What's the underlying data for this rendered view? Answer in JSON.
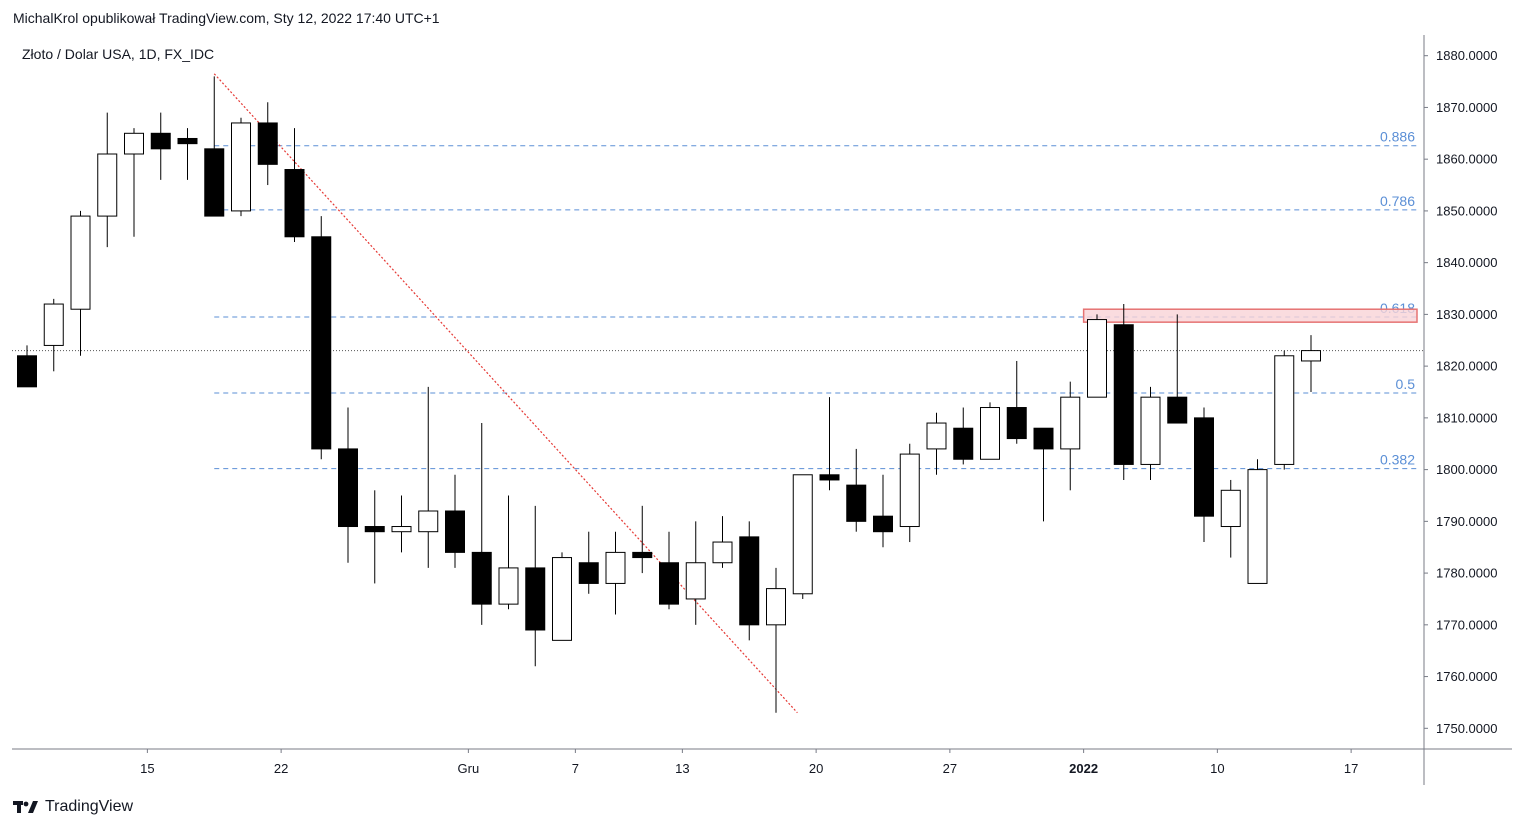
{
  "header": {
    "publisher": "MichalKrol opublikował TradingView.com, Sty 12, 2022 17:40 UTC+1"
  },
  "footer": {
    "brand": "TradingView",
    "logo_icon": "tradingview-logo-icon"
  },
  "chart_data": {
    "type": "candlestick",
    "title": "Złoto / Dolar USA, 1D, FX_IDC",
    "ylim": [
      1746,
      1884
    ],
    "y_ticks": [
      "1880.0000",
      "1870.0000",
      "1860.0000",
      "1850.0000",
      "1840.0000",
      "1830.0000",
      "1820.0000",
      "1810.0000",
      "1800.0000",
      "1790.0000",
      "1780.0000",
      "1770.0000",
      "1760.0000",
      "1750.0000"
    ],
    "y_tick_values": [
      1880,
      1870,
      1860,
      1850,
      1840,
      1830,
      1820,
      1810,
      1800,
      1790,
      1780,
      1770,
      1760,
      1750
    ],
    "x_ticks": [
      {
        "label": "15",
        "index": 4.5
      },
      {
        "label": "22",
        "index": 9.5
      },
      {
        "label": "Gru",
        "index": 16.5
      },
      {
        "label": "7",
        "index": 20.5
      },
      {
        "label": "13",
        "index": 24.5
      },
      {
        "label": "20",
        "index": 29.5
      },
      {
        "label": "27",
        "index": 34.5
      },
      {
        "label": "2022",
        "index": 39.5,
        "bold": true
      },
      {
        "label": "10",
        "index": 44.5
      },
      {
        "label": "17",
        "index": 49.5
      }
    ],
    "candles": [
      {
        "o": 1822,
        "h": 1824,
        "l": 1816,
        "c": 1816
      },
      {
        "o": 1824,
        "h": 1833,
        "l": 1819,
        "c": 1832
      },
      {
        "o": 1831,
        "h": 1850,
        "l": 1822,
        "c": 1849
      },
      {
        "o": 1849,
        "h": 1869,
        "l": 1843,
        "c": 1861
      },
      {
        "o": 1861,
        "h": 1866,
        "l": 1845,
        "c": 1865
      },
      {
        "o": 1865,
        "h": 1869,
        "l": 1856,
        "c": 1862
      },
      {
        "o": 1864,
        "h": 1866,
        "l": 1856,
        "c": 1863
      },
      {
        "o": 1862,
        "h": 1876,
        "l": 1849,
        "c": 1849
      },
      {
        "o": 1850,
        "h": 1868,
        "l": 1849,
        "c": 1867
      },
      {
        "o": 1867,
        "h": 1871,
        "l": 1855,
        "c": 1859
      },
      {
        "o": 1858,
        "h": 1866,
        "l": 1844,
        "c": 1845
      },
      {
        "o": 1845,
        "h": 1849,
        "l": 1802,
        "c": 1804
      },
      {
        "o": 1804,
        "h": 1812,
        "l": 1782,
        "c": 1789
      },
      {
        "o": 1789,
        "h": 1796,
        "l": 1778,
        "c": 1788
      },
      {
        "o": 1788,
        "h": 1795,
        "l": 1784,
        "c": 1789
      },
      {
        "o": 1788,
        "h": 1816,
        "l": 1781,
        "c": 1792
      },
      {
        "o": 1792,
        "h": 1799,
        "l": 1781,
        "c": 1784
      },
      {
        "o": 1784,
        "h": 1809,
        "l": 1770,
        "c": 1774
      },
      {
        "o": 1774,
        "h": 1795,
        "l": 1773,
        "c": 1781
      },
      {
        "o": 1781,
        "h": 1793,
        "l": 1762,
        "c": 1769
      },
      {
        "o": 1767,
        "h": 1784,
        "l": 1767,
        "c": 1783
      },
      {
        "o": 1782,
        "h": 1788,
        "l": 1776,
        "c": 1778
      },
      {
        "o": 1778,
        "h": 1788,
        "l": 1772,
        "c": 1784
      },
      {
        "o": 1784,
        "h": 1793,
        "l": 1780,
        "c": 1783
      },
      {
        "o": 1782,
        "h": 1788,
        "l": 1773,
        "c": 1774
      },
      {
        "o": 1775,
        "h": 1790,
        "l": 1770,
        "c": 1782
      },
      {
        "o": 1782,
        "h": 1791,
        "l": 1781,
        "c": 1786
      },
      {
        "o": 1787,
        "h": 1790,
        "l": 1767,
        "c": 1770
      },
      {
        "o": 1770,
        "h": 1781,
        "l": 1753,
        "c": 1777
      },
      {
        "o": 1776,
        "h": 1799,
        "l": 1775,
        "c": 1799
      },
      {
        "o": 1799,
        "h": 1814,
        "l": 1796,
        "c": 1798
      },
      {
        "o": 1797,
        "h": 1804,
        "l": 1788,
        "c": 1790
      },
      {
        "o": 1791,
        "h": 1799,
        "l": 1785,
        "c": 1788
      },
      {
        "o": 1789,
        "h": 1805,
        "l": 1786,
        "c": 1803
      },
      {
        "o": 1804,
        "h": 1811,
        "l": 1799,
        "c": 1809
      },
      {
        "o": 1808,
        "h": 1812,
        "l": 1801,
        "c": 1802
      },
      {
        "o": 1802,
        "h": 1813,
        "l": 1802,
        "c": 1812
      },
      {
        "o": 1812,
        "h": 1821,
        "l": 1805,
        "c": 1806
      },
      {
        "o": 1808,
        "h": 1808,
        "l": 1790,
        "c": 1804
      },
      {
        "o": 1804,
        "h": 1817,
        "l": 1796,
        "c": 1814
      },
      {
        "o": 1814,
        "h": 1830,
        "l": 1814,
        "c": 1829
      },
      {
        "o": 1828,
        "h": 1832,
        "l": 1798,
        "c": 1801
      },
      {
        "o": 1801,
        "h": 1816,
        "l": 1798,
        "c": 1814
      },
      {
        "o": 1814,
        "h": 1830,
        "l": 1809,
        "c": 1809
      },
      {
        "o": 1810,
        "h": 1812,
        "l": 1786,
        "c": 1791
      },
      {
        "o": 1789,
        "h": 1798,
        "l": 1783,
        "c": 1796
      },
      {
        "o": 1778,
        "h": 1802,
        "l": 1778,
        "c": 1800
      },
      {
        "o": 1801,
        "h": 1823,
        "l": 1800,
        "c": 1822
      },
      {
        "o": 1821,
        "h": 1826,
        "l": 1815,
        "c": 1823
      }
    ],
    "fib_levels": [
      {
        "label": "0.886",
        "value": 1862.6
      },
      {
        "label": "0.786",
        "value": 1850.2
      },
      {
        "label": "0.618",
        "value": 1829.5
      },
      {
        "label": "0.5",
        "value": 1814.8
      },
      {
        "label": "0.382",
        "value": 1800.2
      }
    ],
    "fib_start_index": 7,
    "resistance_zone": {
      "y_low": 1828.5,
      "y_high": 1831,
      "start_index": 39.5
    },
    "trendline": {
      "start": {
        "index": 7,
        "value": 1876.5
      },
      "end": {
        "index": 28.8,
        "value": 1753
      }
    },
    "last_price": 1823,
    "colors": {
      "fib": "#5b8fd6",
      "trendline": "#e53935",
      "zone_fill": "#f9d3d7",
      "zone_border": "#e57373",
      "candle": "#000000",
      "grid_axis": "#787b86"
    }
  }
}
